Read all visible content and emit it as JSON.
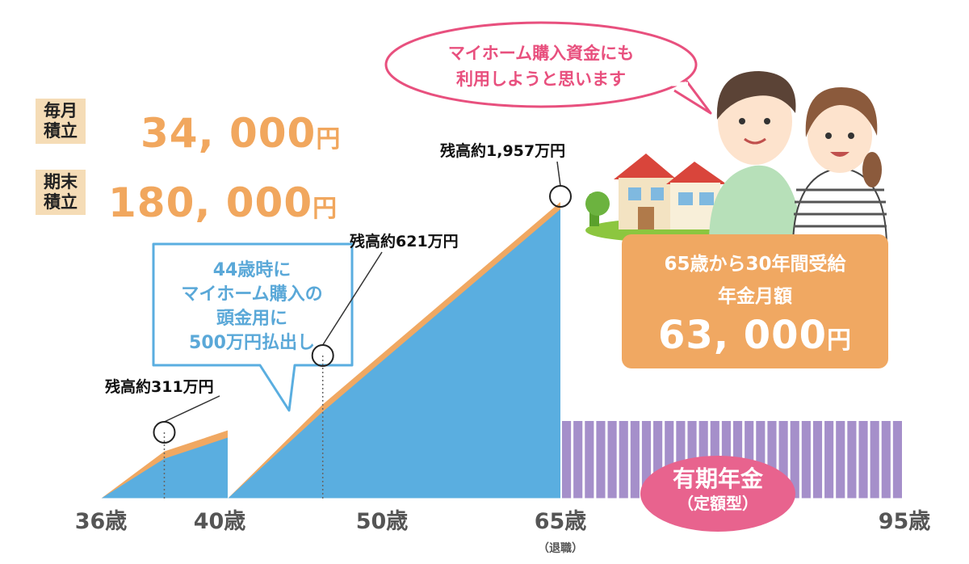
{
  "monthly": {
    "label_line1": "毎月",
    "label_line2": "積立",
    "amount": "34, 000",
    "unit": "円"
  },
  "term_end": {
    "label_line1": "期末",
    "label_line2": "積立",
    "amount": "180, 000",
    "unit": "円"
  },
  "speech": {
    "line1": "マイホーム購入資金にも",
    "line2": "利用しようと思います"
  },
  "withdrawal_note": {
    "line1": "44歳時に",
    "line2": "マイホーム購入の",
    "line3": "頭金用に",
    "line4": "500万円払出し"
  },
  "pension_box": {
    "line1": "65歳から30年間受給",
    "line2": "年金月額",
    "amount": "63, 000",
    "unit": "円"
  },
  "pension_badge": {
    "line1": "有期年金",
    "line2": "（定額型）"
  },
  "colors": {
    "accumulation": "#5aaee0",
    "orange": "#f0a862",
    "pension_bars": "#a58fca",
    "badge": "#e8638e",
    "speech_border": "#e8507e"
  },
  "chart_data": {
    "type": "area",
    "xlabel": "",
    "ylabel": "",
    "x_ticks": [
      "36歳",
      "40歳",
      "50歳",
      "65歳",
      "95歳"
    ],
    "retirement_note": "（退職）",
    "balance_series": {
      "x": [
        36,
        40,
        44,
        44,
        50,
        65
      ],
      "y": [
        0,
        311,
        450,
        0,
        621,
        1957
      ],
      "unit": "万円"
    },
    "withdrawal": {
      "age": 44,
      "amount": 500,
      "unit": "万円"
    },
    "annotations": [
      {
        "age": 40,
        "label": "残高約311万円"
      },
      {
        "age": 50,
        "label": "残高約621万円"
      },
      {
        "age": 65,
        "label": "残高約1,957万円"
      }
    ],
    "pension": {
      "start_age": 65,
      "end_age": 95,
      "monthly_amount": 63000,
      "years": 30
    }
  }
}
